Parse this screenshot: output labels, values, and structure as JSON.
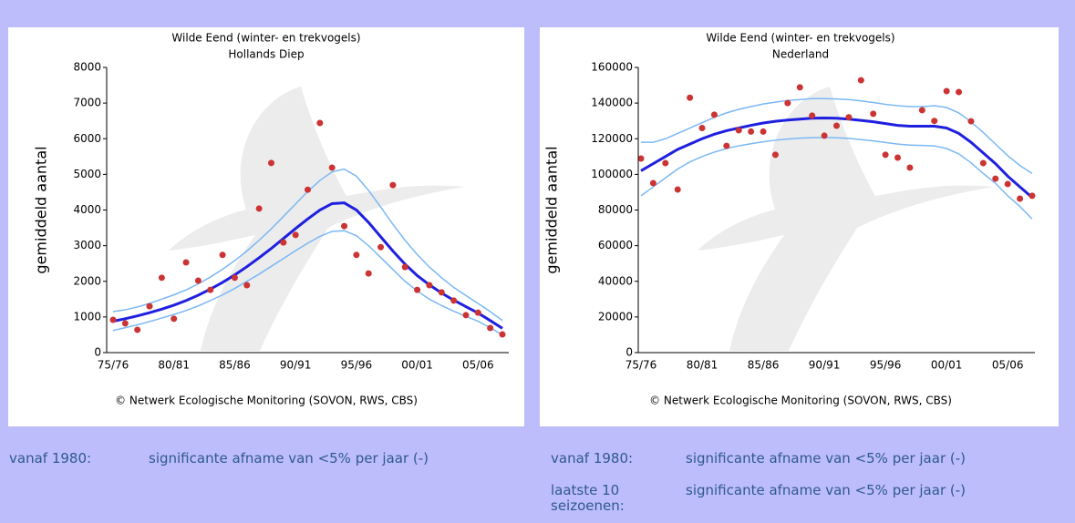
{
  "chart_data": [
    {
      "type": "line",
      "title": "Wilde Eend (winter- en trekvogels)",
      "subtitle": "Hollands Diep",
      "y_label": "gemiddeld aantal",
      "source": "© Netwerk Ecologische Monitoring (SOVON, RWS, CBS)",
      "categories": [
        "75/76",
        null,
        null,
        null,
        null,
        "80/81",
        null,
        null,
        null,
        null,
        "85/86",
        null,
        null,
        null,
        null,
        "90/91",
        null,
        null,
        null,
        null,
        "95/96",
        null,
        null,
        null,
        null,
        "00/01",
        null,
        null,
        null,
        null,
        "05/06",
        null,
        null
      ],
      "ylim": [
        0,
        8000
      ],
      "yticks": [
        0,
        1000,
        2000,
        3000,
        4000,
        5000,
        6000,
        7000,
        8000
      ],
      "series": [
        {
          "mode": "line",
          "color": "#7ab8f5",
          "width": 1.5,
          "values": [
            1150,
            1200,
            1280,
            1380,
            1500,
            1620,
            1760,
            1930,
            2120,
            2340,
            2580,
            2850,
            3150,
            3470,
            3820,
            4170,
            4520,
            4830,
            5070,
            5150,
            4950,
            4550,
            4080,
            3600,
            3150,
            2750,
            2400,
            2100,
            1830,
            1600,
            1380,
            1150,
            900
          ]
        },
        {
          "mode": "line",
          "color": "#7ab8f5",
          "width": 1.5,
          "values": [
            620,
            700,
            780,
            870,
            970,
            1070,
            1180,
            1310,
            1460,
            1620,
            1800,
            2000,
            2200,
            2420,
            2640,
            2860,
            3070,
            3260,
            3400,
            3420,
            3280,
            3000,
            2670,
            2330,
            2000,
            1730,
            1500,
            1320,
            1160,
            1020,
            880,
            700,
            500
          ]
        },
        {
          "mode": "line",
          "color": "#1f1fe0",
          "width": 3,
          "values": [
            880,
            950,
            1030,
            1120,
            1220,
            1330,
            1460,
            1610,
            1780,
            1970,
            2180,
            2410,
            2660,
            2920,
            3200,
            3480,
            3750,
            4000,
            4180,
            4200,
            4000,
            3650,
            3250,
            2850,
            2480,
            2160,
            1900,
            1670,
            1470,
            1290,
            1110,
            900,
            680
          ]
        },
        {
          "mode": "markers",
          "color": "#cc3333",
          "width": 3.5,
          "values": [
            920,
            820,
            640,
            1300,
            2100,
            950,
            2530,
            2020,
            1760,
            2740,
            2100,
            1890,
            4040,
            5320,
            3090,
            3300,
            4570,
            6440,
            5190,
            3550,
            2740,
            2220,
            2960,
            4700,
            2400,
            1760,
            1890,
            1690,
            1460,
            1050,
            1120,
            690,
            510
          ]
        }
      ]
    },
    {
      "type": "line",
      "title": "Wilde Eend (winter- en trekvogels)",
      "subtitle": "Nederland",
      "y_label": "gemiddeld aantal",
      "source": "© Netwerk Ecologische Monitoring (SOVON, RWS, CBS)",
      "categories": [
        "75/76",
        null,
        null,
        null,
        null,
        "80/81",
        null,
        null,
        null,
        null,
        "85/86",
        null,
        null,
        null,
        null,
        "90/91",
        null,
        null,
        null,
        null,
        "95/96",
        null,
        null,
        null,
        null,
        "00/01",
        null,
        null,
        null,
        null,
        "05/06",
        null,
        null
      ],
      "ylim": [
        0,
        160000
      ],
      "yticks": [
        0,
        20000,
        40000,
        60000,
        80000,
        100000,
        120000,
        140000,
        160000
      ],
      "series": [
        {
          "mode": "line",
          "color": "#7ab8f5",
          "width": 1.5,
          "values": [
            118000,
            118000,
            120000,
            123000,
            126000,
            129000,
            132000,
            134500,
            136500,
            138000,
            139500,
            140500,
            141500,
            142000,
            142500,
            142500,
            142300,
            142000,
            141200,
            140300,
            139300,
            138500,
            138000,
            138000,
            138500,
            137500,
            134500,
            129500,
            123500,
            117000,
            110500,
            105000,
            100500
          ]
        },
        {
          "mode": "line",
          "color": "#7ab8f5",
          "width": 1.5,
          "values": [
            88000,
            93000,
            98000,
            103000,
            107000,
            110000,
            112500,
            114500,
            116000,
            117200,
            118300,
            119200,
            119800,
            120300,
            120600,
            120700,
            120500,
            120200,
            119500,
            118800,
            117900,
            117000,
            116400,
            116200,
            116000,
            114500,
            111500,
            106500,
            100500,
            95000,
            88000,
            82000,
            75000
          ]
        },
        {
          "mode": "line",
          "color": "#1f1fe0",
          "width": 3,
          "values": [
            102000,
            106000,
            110000,
            114000,
            117000,
            120000,
            122500,
            124500,
            126000,
            127500,
            128800,
            129800,
            130500,
            131000,
            131500,
            131600,
            131500,
            131000,
            130300,
            129500,
            128500,
            127500,
            127000,
            127000,
            127000,
            126000,
            123000,
            118000,
            112000,
            106000,
            99000,
            93000,
            87000
          ]
        },
        {
          "mode": "markers",
          "color": "#cc3333",
          "width": 3.5,
          "values": [
            108900,
            95100,
            106300,
            91500,
            143000,
            126000,
            133500,
            116000,
            124700,
            124000,
            124000,
            111000,
            140000,
            148800,
            133000,
            121700,
            127300,
            132000,
            152800,
            134000,
            111000,
            109400,
            103800,
            136000,
            130000,
            146700,
            146200,
            129800,
            106300,
            97600,
            94600,
            86400,
            88000
          ]
        }
      ]
    }
  ],
  "notes": [
    [
      {
        "label": "vanaf 1980:",
        "text": "significante afname van <5% per jaar (-)"
      }
    ],
    [
      {
        "label": "vanaf 1980:",
        "text": "significante afname van <5% per jaar (-)"
      },
      {
        "label": "laatste 10 seizoenen:",
        "text": "significante afname van <5% per jaar (-)"
      }
    ]
  ]
}
